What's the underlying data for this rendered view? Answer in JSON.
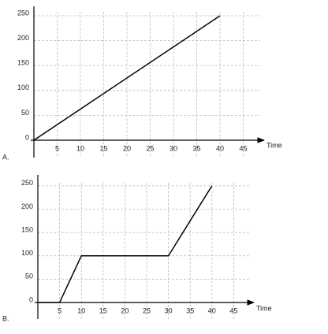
{
  "chart_data": [
    {
      "type": "line",
      "label": "A.",
      "x_label": "Time",
      "x": [
        0,
        40
      ],
      "values": [
        0,
        250
      ],
      "color": "#000000",
      "xlim": [
        0,
        50
      ],
      "ylim": [
        0,
        270
      ],
      "xticks": [
        5,
        10,
        15,
        20,
        25,
        30,
        35,
        40,
        45
      ],
      "yticks": [
        0,
        50,
        100,
        150,
        200,
        250
      ],
      "grid": true
    },
    {
      "type": "line",
      "label": "B.",
      "x_label": "Time",
      "x": [
        0,
        5,
        10,
        30,
        40
      ],
      "values": [
        0,
        0,
        100,
        100,
        250
      ],
      "color": "#000000",
      "xlim": [
        0,
        50
      ],
      "ylim": [
        0,
        270
      ],
      "xticks": [
        5,
        10,
        15,
        20,
        25,
        30,
        35,
        40,
        45
      ],
      "yticks": [
        0,
        50,
        100,
        150,
        200,
        250
      ],
      "grid": true
    }
  ]
}
